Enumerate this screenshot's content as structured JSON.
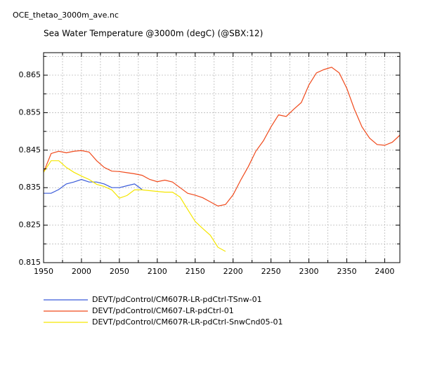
{
  "chart_data": {
    "type": "line",
    "file_label": "OCE_thetao_3000m_ave.nc",
    "title": "Sea Water Temperature @3000m (degC) (@SBX:12)",
    "x": [
      1950,
      1960,
      1970,
      1980,
      1990,
      2000,
      2010,
      2020,
      2030,
      2040,
      2050,
      2060,
      2070,
      2080,
      2090,
      2100,
      2110,
      2120,
      2130,
      2140,
      2150,
      2160,
      2170,
      2180,
      2190,
      2200,
      2210,
      2220,
      2230,
      2240,
      2250,
      2260,
      2270,
      2280,
      2290,
      2300,
      2310,
      2320,
      2330,
      2340,
      2350,
      2360,
      2370,
      2380,
      2390,
      2400,
      2410,
      2420
    ],
    "series": [
      {
        "name": "DEVT/pdControl/CM607R-LR-pdCtrl-TSnw-01",
        "color": "#3a5bd9",
        "values": [
          0.8335,
          0.8335,
          0.8345,
          0.836,
          0.8365,
          0.8372,
          0.8365,
          0.8365,
          0.836,
          0.835,
          0.835,
          0.8355,
          0.836,
          0.8345,
          null,
          null,
          null,
          null,
          null,
          null,
          null,
          null,
          null,
          null,
          null,
          null,
          null,
          null,
          null,
          null,
          null,
          null,
          null,
          null,
          null,
          null,
          null,
          null,
          null,
          null,
          null,
          null,
          null,
          null,
          null,
          null,
          null,
          null
        ]
      },
      {
        "name": "DEVT/pdControl/CM607-LR-pdCtrl-01",
        "color": "#f04a1c",
        "values": [
          0.8391,
          0.8441,
          0.8447,
          0.8443,
          0.8447,
          0.8449,
          0.8445,
          0.8422,
          0.8404,
          0.8394,
          0.8393,
          0.839,
          0.8387,
          0.8383,
          0.8372,
          0.8366,
          0.837,
          0.8365,
          0.835,
          0.8335,
          0.833,
          0.8323,
          0.8312,
          0.8301,
          0.8305,
          0.8331,
          0.837,
          0.8406,
          0.8447,
          0.8475,
          0.8512,
          0.8544,
          0.854,
          0.8559,
          0.8577,
          0.8624,
          0.8656,
          0.8665,
          0.8671,
          0.8656,
          0.8615,
          0.8559,
          0.8512,
          0.8482,
          0.8465,
          0.8463,
          0.8471,
          0.849
        ]
      },
      {
        "name": "DEVT/pdControl/CM607R-LR-pdCtrl-SnwCnd05-01",
        "color": "#f5e600",
        "values": [
          0.8391,
          0.8422,
          0.8422,
          0.8404,
          0.8391,
          0.8381,
          0.8372,
          0.8359,
          0.8353,
          0.8344,
          0.8322,
          0.8329,
          0.8344,
          0.8344,
          0.8342,
          0.834,
          0.8338,
          0.8338,
          0.8325,
          0.8292,
          0.826,
          0.8241,
          0.8223,
          0.8191,
          0.818,
          null,
          null,
          null,
          null,
          null,
          null,
          null,
          null,
          null,
          null,
          null,
          null,
          null,
          null,
          null,
          null,
          null,
          null,
          null,
          null,
          null,
          null,
          null
        ]
      }
    ],
    "xlim": [
      1950,
      2420
    ],
    "xticks": [
      1950,
      2000,
      2050,
      2100,
      2150,
      2200,
      2250,
      2300,
      2350,
      2400
    ],
    "xminorticks": [
      1975,
      2025,
      2075,
      2125,
      2175,
      2225,
      2275,
      2325,
      2375
    ],
    "ylim": [
      0.815,
      0.871
    ],
    "yticks": [
      0.815,
      0.825,
      0.835,
      0.845,
      0.855,
      0.865
    ],
    "yminorticks": [
      0.82,
      0.83,
      0.84,
      0.85,
      0.86,
      0.87
    ],
    "grid": true
  }
}
